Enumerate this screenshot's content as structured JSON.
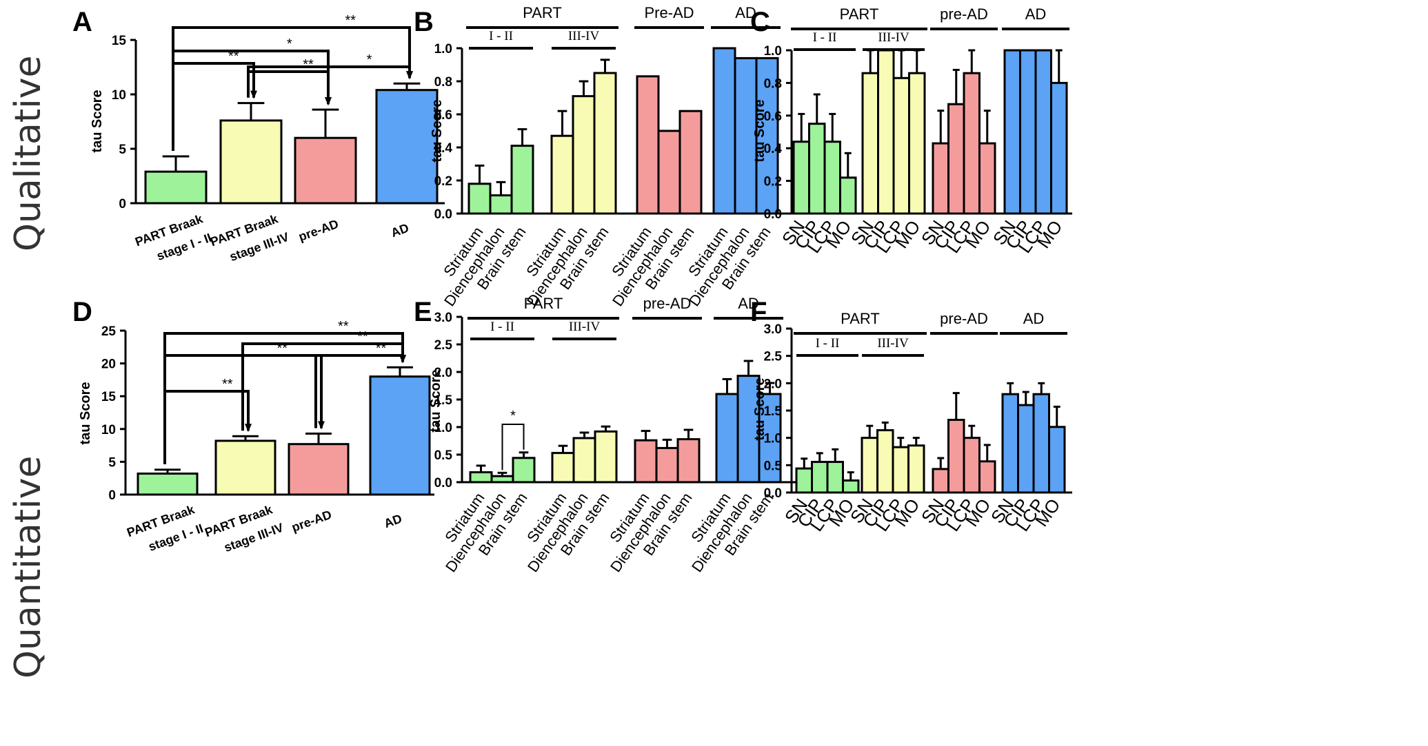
{
  "row_labels": [
    "Qualitative",
    "Quantitative"
  ],
  "colors": {
    "part_1_2": "#9df29a",
    "part_3_4": "#f7fbb4",
    "pre_ad": "#f49c9c",
    "ad": "#5ca2f5"
  },
  "chart_data": [
    {
      "panel": "A",
      "type": "bar",
      "ylabel": "tau Score",
      "ylim": [
        0,
        15
      ],
      "yticks": [
        "0",
        "5",
        "10",
        "15"
      ],
      "categories": [
        [
          "PART Braak",
          "stage I - II"
        ],
        [
          "PART Braak",
          "stage III-IV"
        ],
        [
          "pre-AD"
        ],
        [
          "AD"
        ]
      ],
      "values": [
        2.9,
        7.6,
        6.0,
        10.4
      ],
      "errors": [
        1.4,
        1.6,
        2.6,
        0.6
      ],
      "color_keys": [
        "part_1_2",
        "part_3_4",
        "pre_ad",
        "ad"
      ],
      "significance": [
        {
          "from": 0,
          "to": 3,
          "label": "**"
        },
        {
          "from": 0,
          "to": 2,
          "label": "*"
        },
        {
          "from": 0,
          "to": 1,
          "label": "**"
        },
        {
          "from": 1,
          "to": 2,
          "label": "**"
        },
        {
          "from": 1,
          "to": 3,
          "label": "*"
        }
      ]
    },
    {
      "panel": "B",
      "type": "bar",
      "ylabel": "tau Score",
      "ylim": [
        0,
        1.0
      ],
      "yticks": [
        "0.0",
        "0.2",
        "0.4",
        "0.6",
        "0.8",
        "1.0"
      ],
      "categories": [
        "Striatum",
        "Diencephalon",
        "Brain stem"
      ],
      "groups": [
        {
          "label": "PART",
          "sub": "I - II",
          "color_key": "part_1_2",
          "values": [
            0.18,
            0.11,
            0.41
          ],
          "errors": [
            0.11,
            0.08,
            0.1
          ]
        },
        {
          "label": "PART",
          "sub": "III-IV",
          "color_key": "part_3_4",
          "values": [
            0.47,
            0.71,
            0.85
          ],
          "errors": [
            0.15,
            0.09,
            0.08
          ]
        },
        {
          "label": "Pre-AD",
          "sub": "",
          "color_key": "pre_ad",
          "values": [
            0.83,
            0.5,
            0.62
          ],
          "errors": [
            0,
            0,
            0
          ]
        },
        {
          "label": "AD",
          "sub": "",
          "color_key": "ad",
          "values": [
            1.0,
            0.94,
            0.94
          ],
          "errors": [
            0,
            0,
            0
          ]
        }
      ],
      "group_headers": [
        "PART",
        "Pre-AD",
        "AD"
      ],
      "sub_headers": [
        "I - II",
        "III-IV"
      ]
    },
    {
      "panel": "C",
      "type": "bar",
      "ylabel": "tau Score",
      "ylim": [
        0,
        1.0
      ],
      "yticks": [
        "0.0",
        "0.2",
        "0.4",
        "0.6",
        "0.8",
        "1.0"
      ],
      "categories": [
        "SN",
        "CIP",
        "LCP",
        "MO"
      ],
      "groups": [
        {
          "label": "PART",
          "sub": "I - II",
          "color_key": "part_1_2",
          "values": [
            0.44,
            0.55,
            0.44,
            0.22
          ],
          "errors": [
            0.17,
            0.18,
            0.17,
            0.15
          ]
        },
        {
          "label": "PART",
          "sub": "III-IV",
          "color_key": "part_3_4",
          "values": [
            0.86,
            1.0,
            0.83,
            0.86
          ],
          "errors": [
            0.14,
            0,
            0.17,
            0.14
          ]
        },
        {
          "label": "pre-AD",
          "sub": "",
          "color_key": "pre_ad",
          "values": [
            0.43,
            0.67,
            0.86,
            0.43
          ],
          "errors": [
            0.2,
            0.21,
            0.14,
            0.2
          ]
        },
        {
          "label": "AD",
          "sub": "",
          "color_key": "ad",
          "values": [
            1.0,
            1.0,
            1.0,
            0.8
          ],
          "errors": [
            0,
            0,
            0,
            0.2
          ]
        }
      ],
      "group_headers": [
        "PART",
        "pre-AD",
        "AD"
      ],
      "sub_headers": [
        "I - II",
        "III-IV"
      ]
    },
    {
      "panel": "D",
      "type": "bar",
      "ylabel": "tau Score",
      "ylim": [
        0,
        25
      ],
      "yticks": [
        "0",
        "5",
        "10",
        "15",
        "20",
        "25"
      ],
      "categories": [
        [
          "PART Braak",
          "stage I - II"
        ],
        [
          "PART Braak",
          "stage III-IV"
        ],
        [
          "pre-AD"
        ],
        [
          "AD"
        ]
      ],
      "values": [
        3.2,
        8.2,
        7.7,
        18.0
      ],
      "errors": [
        0.6,
        0.7,
        1.6,
        1.4
      ],
      "color_keys": [
        "part_1_2",
        "part_3_4",
        "pre_ad",
        "ad"
      ],
      "significance": [
        {
          "from": 0,
          "to": 3,
          "label": "**"
        },
        {
          "from": 1,
          "to": 3,
          "label": "**"
        },
        {
          "from": 0,
          "to": 2,
          "label": "**"
        },
        {
          "from": 2,
          "to": 3,
          "label": "**"
        },
        {
          "from": 0,
          "to": 1,
          "label": "**"
        }
      ]
    },
    {
      "panel": "E",
      "type": "bar",
      "ylabel": "tau Score",
      "ylim": [
        0,
        3.0
      ],
      "yticks": [
        "0.0",
        "0.5",
        "1.0",
        "1.5",
        "2.0",
        "2.5",
        "3.0"
      ],
      "categories": [
        "Striatum",
        "Diencephalon",
        "Brain stem"
      ],
      "groups": [
        {
          "label": "PART",
          "sub": "I - II",
          "color_key": "part_1_2",
          "values": [
            0.18,
            0.11,
            0.44
          ],
          "errors": [
            0.12,
            0.06,
            0.1
          ]
        },
        {
          "label": "PART",
          "sub": "III-IV",
          "color_key": "part_3_4",
          "values": [
            0.53,
            0.8,
            0.92
          ],
          "errors": [
            0.13,
            0.1,
            0.09
          ]
        },
        {
          "label": "pre-AD",
          "sub": "",
          "color_key": "pre_ad",
          "values": [
            0.76,
            0.62,
            0.78
          ],
          "errors": [
            0.17,
            0.15,
            0.17
          ]
        },
        {
          "label": "AD",
          "sub": "",
          "color_key": "ad",
          "values": [
            1.6,
            1.93,
            1.6
          ],
          "errors": [
            0.27,
            0.27,
            0.2
          ]
        }
      ],
      "group_headers": [
        "PART",
        "pre-AD",
        "AD"
      ],
      "sub_headers": [
        "I - II",
        "III-IV"
      ],
      "significance": [
        {
          "label": "*"
        }
      ]
    },
    {
      "panel": "F",
      "type": "bar",
      "ylabel": "tau Score",
      "ylim": [
        0,
        3.0
      ],
      "yticks": [
        "0.0",
        "0.5",
        "1.0",
        "1.5",
        "2.0",
        "2.5",
        "3.0"
      ],
      "categories": [
        "SN",
        "CIP",
        "LCP",
        "MO"
      ],
      "groups": [
        {
          "label": "PART",
          "sub": "I - II",
          "color_key": "part_1_2",
          "values": [
            0.44,
            0.56,
            0.56,
            0.22
          ],
          "errors": [
            0.18,
            0.16,
            0.23,
            0.15
          ]
        },
        {
          "label": "PART",
          "sub": "III-IV",
          "color_key": "part_3_4",
          "values": [
            1.0,
            1.14,
            0.83,
            0.86
          ],
          "errors": [
            0.22,
            0.14,
            0.17,
            0.14
          ]
        },
        {
          "label": "pre-AD",
          "sub": "",
          "color_key": "pre_ad",
          "values": [
            0.43,
            1.33,
            1.0,
            0.57
          ],
          "errors": [
            0.2,
            0.49,
            0.22,
            0.3
          ]
        },
        {
          "label": "AD",
          "sub": "",
          "color_key": "ad",
          "values": [
            1.8,
            1.6,
            1.8,
            1.2
          ],
          "errors": [
            0.2,
            0.24,
            0.2,
            0.37
          ]
        }
      ],
      "group_headers": [
        "PART",
        "pre-AD",
        "AD"
      ],
      "sub_headers": [
        "I - II",
        "III-IV"
      ]
    }
  ]
}
